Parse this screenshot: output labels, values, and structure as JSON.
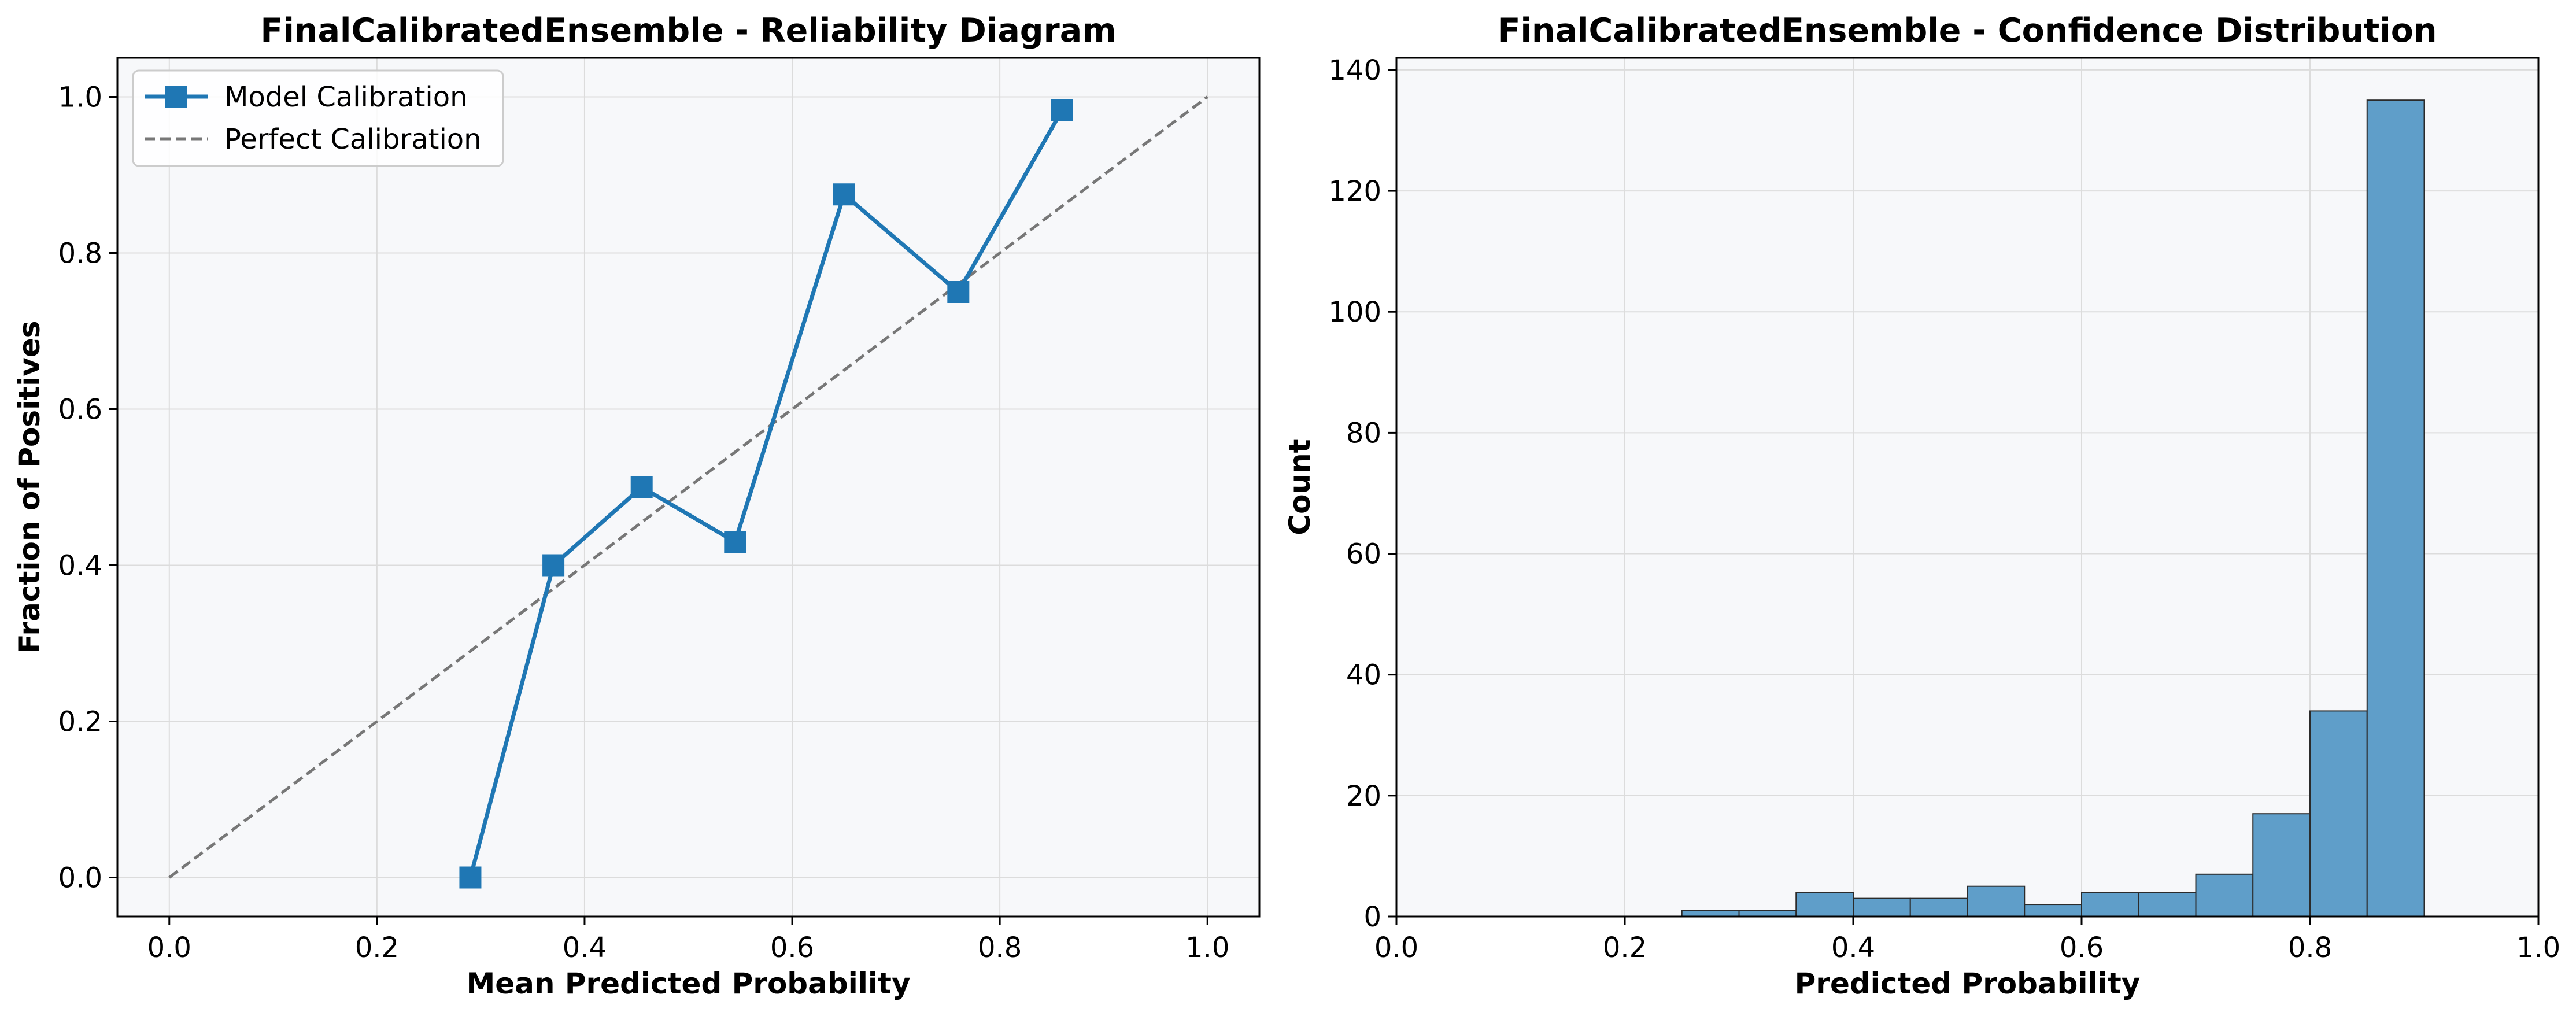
{
  "chart_data": [
    {
      "type": "line",
      "title": "FinalCalibratedEnsemble - Reliability Diagram",
      "xlabel": "Mean Predicted Probability",
      "ylabel": "Fraction of Positives",
      "xlim": [
        -0.05,
        1.05
      ],
      "ylim": [
        -0.05,
        1.05
      ],
      "xticks": [
        "0.0",
        "0.2",
        "0.4",
        "0.6",
        "0.8",
        "1.0"
      ],
      "yticks": [
        "0.0",
        "0.2",
        "0.4",
        "0.6",
        "0.8",
        "1.0"
      ],
      "grid": true,
      "legend_position": "upper-left",
      "series": [
        {
          "name": "Model Calibration",
          "style": "solid-line-square-markers",
          "color": "#1f77b4",
          "x": [
            0.29,
            0.37,
            0.455,
            0.545,
            0.65,
            0.76,
            0.86
          ],
          "y": [
            0.0,
            0.4,
            0.5,
            0.43,
            0.875,
            0.75,
            0.983
          ]
        },
        {
          "name": "Perfect Calibration",
          "style": "dashed",
          "color": "#777777",
          "x": [
            0.0,
            1.0
          ],
          "y": [
            0.0,
            1.0
          ]
        }
      ]
    },
    {
      "type": "bar",
      "subtype": "histogram",
      "title": "FinalCalibratedEnsemble - Confidence Distribution",
      "xlabel": "Predicted Probability",
      "ylabel": "Count",
      "xlim": [
        0.0,
        1.0
      ],
      "ylim": [
        0,
        142
      ],
      "xticks": [
        "0.0",
        "0.2",
        "0.4",
        "0.6",
        "0.8",
        "1.0"
      ],
      "yticks": [
        "0",
        "20",
        "40",
        "60",
        "80",
        "100",
        "120",
        "140"
      ],
      "grid": true,
      "color": "#5f9ec9",
      "bin_edges": [
        0.25,
        0.3,
        0.35,
        0.4,
        0.45,
        0.5,
        0.55,
        0.6,
        0.65,
        0.7,
        0.75,
        0.8,
        0.85,
        0.9
      ],
      "values": [
        1,
        1,
        4,
        3,
        3,
        5,
        2,
        4,
        4,
        7,
        17,
        34,
        135
      ]
    }
  ]
}
